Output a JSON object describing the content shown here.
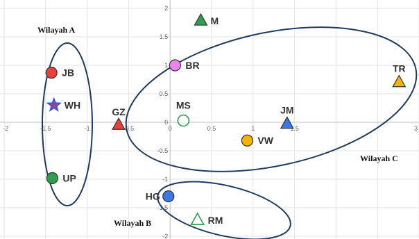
{
  "chart_data": {
    "type": "scatter",
    "xlim": [
      -2,
      3
    ],
    "ylim": [
      -2,
      2
    ],
    "x_ticks": [
      -2,
      -1.5,
      -1,
      -0.5,
      0,
      0.5,
      1,
      1.5,
      2,
      2.5,
      3
    ],
    "y_ticks": [
      2,
      1.5,
      1,
      0.5,
      0,
      -0.5,
      -1,
      -1.5,
      -2
    ],
    "x_tick_labels": [
      "-2",
      "-1.5",
      "-1",
      "-0.5",
      "0",
      "0.5",
      "1",
      "1.5",
      "",
      "",
      "3"
    ],
    "y_tick_labels": [
      "2",
      "1.5",
      "1",
      "0.5",
      "0",
      "-0.5",
      "-1",
      "-1.5",
      "-2"
    ],
    "grid": true,
    "points": [
      {
        "label": "JB",
        "x": -1.43,
        "y": 0.87,
        "shape": "circle",
        "color": "#e8403a"
      },
      {
        "label": "WH",
        "x": -1.4,
        "y": 0.3,
        "shape": "star",
        "color": "#8e44ad"
      },
      {
        "label": "UP",
        "x": -1.42,
        "y": -0.98,
        "shape": "circle",
        "color": "#2e9e4f"
      },
      {
        "label": "GZ",
        "x": -0.62,
        "y": -0.05,
        "shape": "triangle",
        "color": "#e8403a"
      },
      {
        "label": "M",
        "x": 0.37,
        "y": 1.78,
        "shape": "triangle",
        "color": "#2e9e4f"
      },
      {
        "label": "BR",
        "x": 0.06,
        "y": 1.0,
        "shape": "circle",
        "color": "#ee82ee"
      },
      {
        "label": "MS",
        "x": 0.16,
        "y": 0.03,
        "shape": "circle-open",
        "color": "#2e9e4f"
      },
      {
        "label": "TR",
        "x": 2.76,
        "y": 0.7,
        "shape": "triangle",
        "color": "#f4b400"
      },
      {
        "label": "JM",
        "x": 1.41,
        "y": -0.03,
        "shape": "triangle",
        "color": "#3b78e7"
      },
      {
        "label": "VW",
        "x": 0.93,
        "y": -0.32,
        "shape": "circle",
        "color": "#f4b400"
      },
      {
        "label": "HG",
        "x": -0.02,
        "y": -1.3,
        "shape": "circle",
        "color": "#3b78e7"
      },
      {
        "label": "RM",
        "x": 0.33,
        "y": -1.72,
        "shape": "triangle-open",
        "color": "#2e9e4f"
      }
    ],
    "groups": [
      {
        "label": "Wilayah A"
      },
      {
        "label": "Wilayah B"
      },
      {
        "label": "Wilayah C"
      }
    ]
  }
}
